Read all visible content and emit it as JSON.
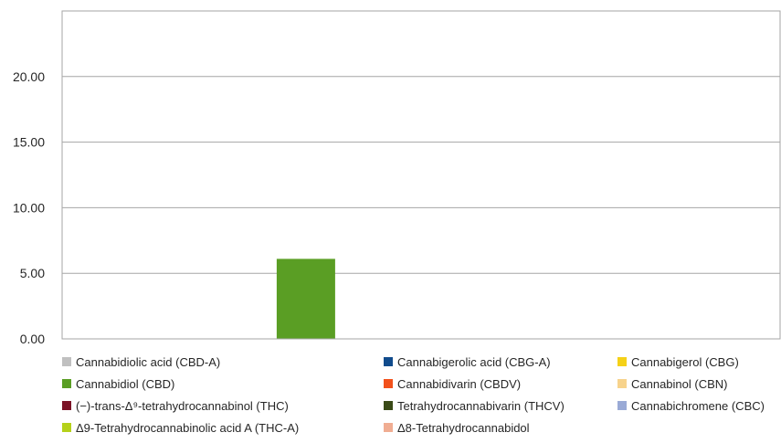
{
  "chart_data": {
    "type": "bar",
    "categories": [
      ""
    ],
    "series": [
      {
        "name": "Cannabidiolic acid (CBD-A)",
        "color": "#c0c0c0",
        "values": [
          0
        ]
      },
      {
        "name": "Cannabigerolic acid (CBG-A)",
        "color": "#114b8c",
        "values": [
          0
        ]
      },
      {
        "name": "Cannabigerol (CBG)",
        "color": "#f5d118",
        "values": [
          0
        ]
      },
      {
        "name": "Cannabidiol (CBD)",
        "color": "#5a9e24",
        "values": [
          6.1
        ]
      },
      {
        "name": "Cannabidivarin (CBDV)",
        "color": "#f2511b",
        "values": [
          0
        ]
      },
      {
        "name": "Cannabinol (CBN)",
        "color": "#f7d38c",
        "values": [
          0
        ]
      },
      {
        "name": "(−)-trans-Δ⁹-tetrahydrocannabinol (THC)",
        "color": "#7b1226",
        "values": [
          0
        ]
      },
      {
        "name": "Tetrahydrocannabivarin (THCV)",
        "color": "#3a4a17",
        "values": [
          0
        ]
      },
      {
        "name": "Cannabichromene (CBC)",
        "color": "#9aaad6",
        "values": [
          0
        ]
      },
      {
        "name": "Δ9-Tetrahydrocannabinolic acid A (THC-A)",
        "color": "#b5d11a",
        "values": [
          0
        ]
      },
      {
        "name": "Δ8-Tetrahydrocannabidol",
        "color": "#f0ad92",
        "values": [
          0
        ]
      }
    ],
    "yticks": [
      "0.00",
      "5.00",
      "10.00",
      "15.00",
      "20.00"
    ],
    "ylim": [
      0,
      25
    ],
    "grid": true,
    "legend_position": "bottom"
  }
}
